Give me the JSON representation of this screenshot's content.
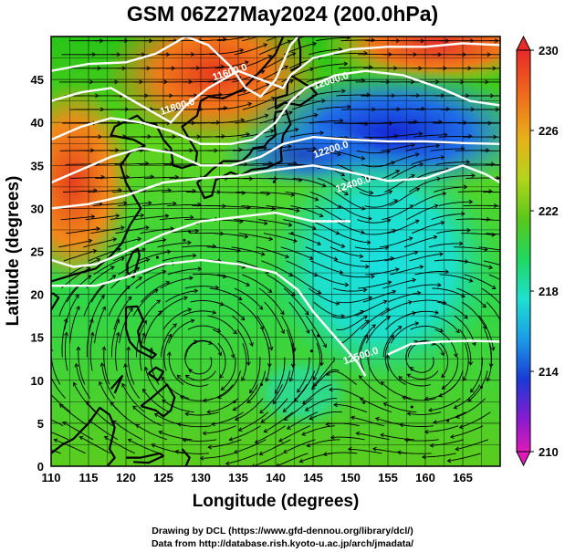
{
  "title": "GSM 06Z27May2024 (200.0hPa)",
  "xlabel": "Longitude (degrees)",
  "ylabel": "Latitude (degrees)",
  "x_ticks": [
    "110",
    "115",
    "120",
    "125",
    "130",
    "135",
    "140",
    "145",
    "150",
    "155",
    "160",
    "165"
  ],
  "y_ticks": [
    "0",
    "5",
    "10",
    "15",
    "20",
    "25",
    "30",
    "35",
    "40",
    "45"
  ],
  "xlim": [
    110,
    170
  ],
  "ylim": [
    0,
    50
  ],
  "colorbar": {
    "ticks": [
      "230",
      "226",
      "222",
      "218",
      "214",
      "210"
    ],
    "range": [
      210,
      230
    ]
  },
  "contour_labels": [
    {
      "text": "11600.0",
      "lon": 134.0,
      "lat": 45.5
    },
    {
      "text": "11800.0",
      "lon": 127.0,
      "lat": 41.5
    },
    {
      "text": "12000.0",
      "lon": 147.5,
      "lat": 44.5
    },
    {
      "text": "12200.0",
      "lon": 147.5,
      "lat": 36.5
    },
    {
      "text": "12400.0",
      "lon": 150.5,
      "lat": 32.5
    },
    {
      "text": "12500.0",
      "lon": 151.5,
      "lat": 12.5
    }
  ],
  "credits": {
    "line1": "Drawing by DCL (https://www.gfd-dennou.org/library/dcl/)",
    "line2": "Data from http://database.rish.kyoto-u.ac.jp/arch/jmadata/"
  }
}
